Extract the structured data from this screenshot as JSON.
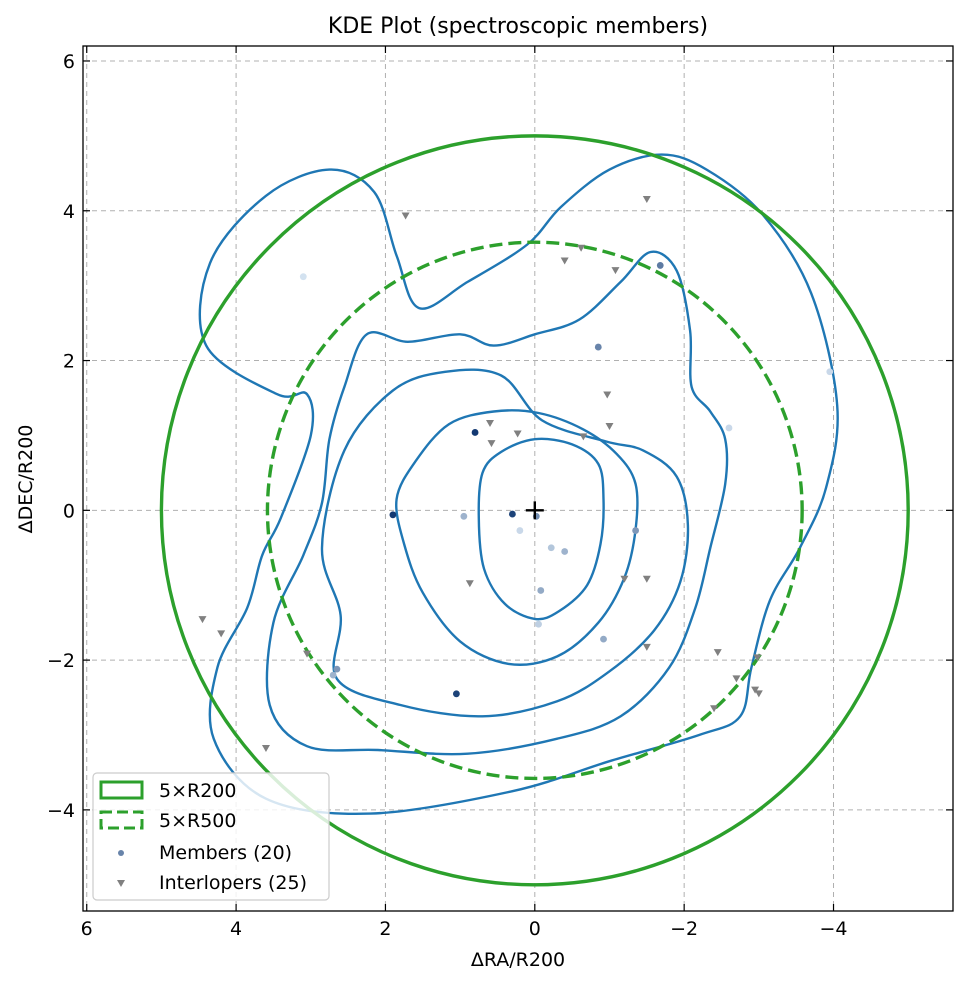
{
  "chart_data": {
    "type": "scatter",
    "title": "KDE Plot (spectroscopic members)",
    "xlabel": "ΔRA/R200",
    "ylabel": "ΔDEC/R200",
    "xlim": [
      6.05,
      -5.6
    ],
    "ylim": [
      -5.35,
      6.2
    ],
    "x_ticks": [
      6,
      4,
      2,
      0,
      -2,
      -4
    ],
    "x_tick_labels": [
      "6",
      "4",
      "2",
      "0",
      "−2",
      "−4"
    ],
    "y_ticks": [
      6,
      4,
      2,
      0,
      -2,
      -4
    ],
    "y_tick_labels": [
      "6",
      "4",
      "2",
      "0",
      "−2",
      "−4"
    ],
    "grid": true,
    "legend_position": "lower-left",
    "colors": {
      "circle": "#2ca02c",
      "contour": "#1f77b4",
      "interloper": "#808080",
      "member_light": "#deebf7",
      "member_dark": "#08306b"
    },
    "center_marker": {
      "x": 0,
      "y": 0
    },
    "circles": [
      {
        "name": "5×R200",
        "radius": 5.0,
        "style": "solid"
      },
      {
        "name": "5×R500",
        "radius": 3.58,
        "style": "dashed"
      }
    ],
    "series": [
      {
        "name": "Members (20)",
        "marker": "circle",
        "points": [
          [
            3.1,
            3.12,
            0.05
          ],
          [
            -0.85,
            2.18,
            0.55
          ],
          [
            -1.68,
            3.27,
            0.6
          ],
          [
            0.8,
            1.04,
            0.95
          ],
          [
            1.9,
            -0.06,
            0.95
          ],
          [
            0.3,
            -0.05,
            0.9
          ],
          [
            -0.02,
            -0.08,
            0.5
          ],
          [
            0.95,
            -0.08,
            0.3
          ],
          [
            -1.35,
            -0.27,
            0.45
          ],
          [
            0.2,
            -0.27,
            0.1
          ],
          [
            -0.22,
            -0.5,
            0.2
          ],
          [
            -0.4,
            -0.55,
            0.3
          ],
          [
            -0.08,
            -1.07,
            0.35
          ],
          [
            -0.05,
            -1.52,
            0.15
          ],
          [
            -0.92,
            -1.72,
            0.35
          ],
          [
            1.05,
            -2.45,
            0.9
          ],
          [
            2.65,
            -2.12,
            0.45
          ],
          [
            2.7,
            -2.2,
            0.3
          ],
          [
            -2.6,
            1.1,
            0.1
          ],
          [
            -3.95,
            1.85,
            0.1
          ]
        ]
      },
      {
        "name": "Interlopers (25)",
        "marker": "triangle-down",
        "points": [
          [
            1.73,
            3.93
          ],
          [
            -1.5,
            4.15
          ],
          [
            -0.62,
            3.5
          ],
          [
            -0.4,
            3.33
          ],
          [
            -1.08,
            3.2
          ],
          [
            -0.97,
            1.54
          ],
          [
            -1.0,
            1.12
          ],
          [
            0.6,
            1.16
          ],
          [
            0.58,
            0.89
          ],
          [
            0.23,
            1.02
          ],
          [
            -0.65,
            0.98
          ],
          [
            0.87,
            -0.98
          ],
          [
            -1.2,
            -0.92
          ],
          [
            -1.5,
            -0.92
          ],
          [
            -1.5,
            -1.83
          ],
          [
            4.45,
            -1.46
          ],
          [
            4.2,
            -1.65
          ],
          [
            3.05,
            -1.92
          ],
          [
            3.6,
            -3.18
          ],
          [
            -2.45,
            -1.9
          ],
          [
            -2.98,
            -1.97
          ],
          [
            -2.7,
            -2.25
          ],
          [
            -2.4,
            -2.65
          ],
          [
            -2.95,
            -2.4
          ],
          [
            -3.0,
            -2.45
          ]
        ]
      }
    ],
    "contours": [
      [
        [
          0.7,
          0.5
        ],
        [
          0.45,
          0.78
        ],
        [
          0.0,
          0.95
        ],
        [
          -0.5,
          0.88
        ],
        [
          -0.85,
          0.62
        ],
        [
          -0.92,
          0.15
        ],
        [
          -0.88,
          -0.45
        ],
        [
          -0.7,
          -1.0
        ],
        [
          -0.32,
          -1.35
        ],
        [
          0.0,
          -1.45
        ],
        [
          0.4,
          -1.25
        ],
        [
          0.68,
          -0.78
        ],
        [
          0.75,
          -0.1
        ]
      ],
      [
        [
          1.6,
          0.65
        ],
        [
          1.15,
          1.15
        ],
        [
          0.55,
          1.32
        ],
        [
          -0.05,
          1.3
        ],
        [
          -0.65,
          1.08
        ],
        [
          -1.1,
          0.75
        ],
        [
          -1.35,
          0.35
        ],
        [
          -1.35,
          -0.25
        ],
        [
          -1.2,
          -0.9
        ],
        [
          -0.85,
          -1.5
        ],
        [
          -0.3,
          -1.95
        ],
        [
          0.35,
          -2.05
        ],
        [
          1.0,
          -1.75
        ],
        [
          1.5,
          -1.1
        ],
        [
          1.75,
          -0.45
        ],
        [
          1.85,
          0.15
        ]
      ],
      [
        [
          2.55,
          0.8
        ],
        [
          1.9,
          1.6
        ],
        [
          1.2,
          1.85
        ],
        [
          0.45,
          1.8
        ],
        [
          -0.1,
          1.2
        ],
        [
          -0.95,
          0.92
        ],
        [
          -1.45,
          0.8
        ],
        [
          -1.9,
          0.45
        ],
        [
          -2.05,
          -0.2
        ],
        [
          -1.95,
          -0.95
        ],
        [
          -1.6,
          -1.6
        ],
        [
          -1.0,
          -2.15
        ],
        [
          -0.3,
          -2.55
        ],
        [
          0.7,
          -2.75
        ],
        [
          1.8,
          -2.6
        ],
        [
          2.65,
          -2.25
        ],
        [
          2.6,
          -1.4
        ],
        [
          2.85,
          -0.5
        ]
      ],
      [
        [
          2.25,
          2.35
        ],
        [
          1.7,
          2.25
        ],
        [
          1.0,
          2.35
        ],
        [
          0.55,
          2.2
        ],
        [
          0.0,
          2.35
        ],
        [
          -0.6,
          2.55
        ],
        [
          -1.15,
          3.05
        ],
        [
          -1.55,
          3.45
        ],
        [
          -1.9,
          3.2
        ],
        [
          -2.08,
          2.4
        ],
        [
          -2.1,
          1.65
        ],
        [
          -2.35,
          1.32
        ],
        [
          -2.55,
          0.95
        ],
        [
          -2.55,
          0.35
        ],
        [
          -2.35,
          -0.5
        ],
        [
          -2.15,
          -1.3
        ],
        [
          -1.8,
          -2.1
        ],
        [
          -1.15,
          -2.75
        ],
        [
          -0.3,
          -3.05
        ],
        [
          0.9,
          -3.25
        ],
        [
          2.1,
          -3.2
        ],
        [
          3.05,
          -3.15
        ],
        [
          3.55,
          -2.6
        ],
        [
          3.5,
          -1.5
        ],
        [
          3.1,
          -0.6
        ],
        [
          2.85,
          0.1
        ],
        [
          2.75,
          0.95
        ],
        [
          2.55,
          1.65
        ]
      ],
      [
        [
          2.75,
          4.55
        ],
        [
          3.6,
          4.2
        ],
        [
          4.35,
          3.3
        ],
        [
          4.4,
          2.2
        ],
        [
          3.45,
          1.55
        ],
        [
          3.05,
          1.55
        ],
        [
          3.0,
          1.0
        ],
        [
          3.4,
          -0.1
        ],
        [
          3.65,
          -0.6
        ],
        [
          3.85,
          -1.3
        ],
        [
          4.25,
          -2.1
        ],
        [
          4.3,
          -3.05
        ],
        [
          3.6,
          -3.85
        ],
        [
          2.2,
          -4.05
        ],
        [
          0.3,
          -3.75
        ],
        [
          -1.0,
          -3.35
        ],
        [
          -2.2,
          -3.0
        ],
        [
          -2.75,
          -2.75
        ],
        [
          -2.9,
          -2.1
        ],
        [
          -3.15,
          -1.2
        ],
        [
          -3.55,
          -0.5
        ],
        [
          -3.9,
          0.3
        ],
        [
          -4.05,
          1.4
        ],
        [
          -3.7,
          2.9
        ],
        [
          -3.05,
          3.95
        ],
        [
          -2.3,
          4.55
        ],
        [
          -1.7,
          4.75
        ],
        [
          -1.0,
          4.55
        ],
        [
          -0.35,
          4.05
        ],
        [
          0.1,
          3.55
        ],
        [
          0.9,
          3.05
        ],
        [
          1.55,
          2.7
        ],
        [
          1.85,
          3.4
        ],
        [
          2.15,
          4.25
        ]
      ]
    ]
  }
}
